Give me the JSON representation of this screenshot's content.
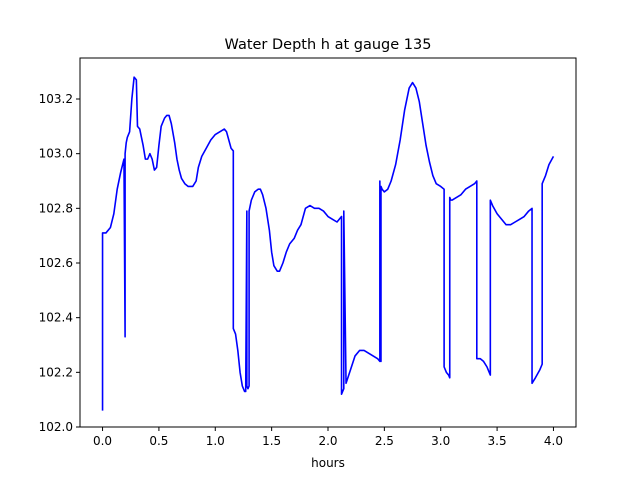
{
  "chart_data": {
    "type": "line",
    "title": "Water Depth h at gauge 135",
    "xlabel": "hours",
    "ylabel": "",
    "xlim": [
      -0.2,
      4.2
    ],
    "ylim": [
      102.0,
      103.35
    ],
    "xticks": [
      0.0,
      0.5,
      1.0,
      1.5,
      2.0,
      2.5,
      3.0,
      3.5,
      4.0
    ],
    "xtick_labels": [
      "0.0",
      "0.5",
      "1.0",
      "1.5",
      "2.0",
      "2.5",
      "3.0",
      "3.5",
      "4.0"
    ],
    "yticks": [
      102.0,
      102.2,
      102.4,
      102.6,
      102.8,
      103.0,
      103.2
    ],
    "ytick_labels": [
      "102.0",
      "102.2",
      "102.4",
      "102.6",
      "102.8",
      "103.0",
      "103.2"
    ],
    "grid": false,
    "series": [
      {
        "color": "#0000ff",
        "x": [
          0.0,
          0.0,
          0.03,
          0.07,
          0.1,
          0.13,
          0.16,
          0.19,
          0.2,
          0.2,
          0.21,
          0.22,
          0.24,
          0.26,
          0.28,
          0.3,
          0.31,
          0.33,
          0.34,
          0.36,
          0.38,
          0.4,
          0.42,
          0.44,
          0.46,
          0.48,
          0.5,
          0.52,
          0.55,
          0.57,
          0.59,
          0.61,
          0.64,
          0.66,
          0.68,
          0.7,
          0.73,
          0.76,
          0.8,
          0.83,
          0.85,
          0.88,
          0.92,
          0.96,
          1.0,
          1.04,
          1.08,
          1.1,
          1.12,
          1.14,
          1.16,
          1.16,
          1.18,
          1.2,
          1.22,
          1.24,
          1.26,
          1.27,
          1.28,
          1.28,
          1.29,
          1.3,
          1.3,
          1.32,
          1.35,
          1.38,
          1.4,
          1.42,
          1.45,
          1.48,
          1.5,
          1.52,
          1.55,
          1.57,
          1.6,
          1.63,
          1.66,
          1.7,
          1.73,
          1.76,
          1.8,
          1.84,
          1.88,
          1.92,
          1.96,
          2.0,
          2.04,
          2.08,
          2.12,
          2.12,
          2.13,
          2.14,
          2.14,
          2.16,
          2.2,
          2.24,
          2.28,
          2.32,
          2.36,
          2.4,
          2.44,
          2.46,
          2.46,
          2.47,
          2.47,
          2.48,
          2.5,
          2.53,
          2.56,
          2.6,
          2.64,
          2.68,
          2.72,
          2.75,
          2.78,
          2.81,
          2.84,
          2.87,
          2.9,
          2.93,
          2.96,
          3.0,
          3.03,
          3.03,
          3.05,
          3.07,
          3.08,
          3.08,
          3.09,
          3.1,
          3.14,
          3.18,
          3.22,
          3.26,
          3.3,
          3.32,
          3.32,
          3.35,
          3.38,
          3.41,
          3.44,
          3.44,
          3.46,
          3.5,
          3.54,
          3.58,
          3.62,
          3.66,
          3.7,
          3.74,
          3.78,
          3.81,
          3.81,
          3.84,
          3.88,
          3.9,
          3.9,
          3.93,
          3.96,
          4.0
        ],
        "y": [
          102.06,
          102.71,
          102.71,
          102.73,
          102.78,
          102.87,
          102.93,
          102.98,
          102.33,
          103.0,
          103.04,
          103.06,
          103.08,
          103.2,
          103.28,
          103.27,
          103.1,
          103.09,
          103.07,
          103.03,
          102.98,
          102.98,
          103.0,
          102.98,
          102.94,
          102.95,
          103.03,
          103.1,
          103.13,
          103.14,
          103.14,
          103.11,
          103.04,
          102.98,
          102.94,
          102.91,
          102.89,
          102.88,
          102.88,
          102.9,
          102.95,
          102.99,
          103.02,
          103.05,
          103.07,
          103.08,
          103.09,
          103.08,
          103.05,
          103.02,
          103.01,
          102.36,
          102.34,
          102.28,
          102.2,
          102.15,
          102.13,
          102.13,
          102.79,
          102.15,
          102.14,
          102.15,
          102.79,
          102.83,
          102.86,
          102.87,
          102.87,
          102.85,
          102.8,
          102.72,
          102.64,
          102.59,
          102.57,
          102.57,
          102.6,
          102.64,
          102.67,
          102.69,
          102.72,
          102.74,
          102.8,
          102.81,
          102.8,
          102.8,
          102.79,
          102.77,
          102.76,
          102.75,
          102.77,
          102.12,
          102.13,
          102.14,
          102.79,
          102.16,
          102.21,
          102.26,
          102.28,
          102.28,
          102.27,
          102.26,
          102.25,
          102.24,
          102.9,
          102.24,
          102.88,
          102.87,
          102.86,
          102.87,
          102.9,
          102.96,
          103.05,
          103.16,
          103.24,
          103.26,
          103.24,
          103.19,
          103.11,
          103.03,
          102.97,
          102.92,
          102.89,
          102.88,
          102.87,
          102.22,
          102.2,
          102.19,
          102.18,
          102.84,
          102.83,
          102.83,
          102.84,
          102.85,
          102.87,
          102.88,
          102.89,
          102.9,
          102.25,
          102.25,
          102.24,
          102.22,
          102.19,
          102.83,
          102.81,
          102.78,
          102.76,
          102.74,
          102.74,
          102.75,
          102.76,
          102.77,
          102.79,
          102.8,
          102.16,
          102.18,
          102.21,
          102.23,
          102.89,
          102.92,
          102.96,
          102.99
        ]
      }
    ]
  }
}
